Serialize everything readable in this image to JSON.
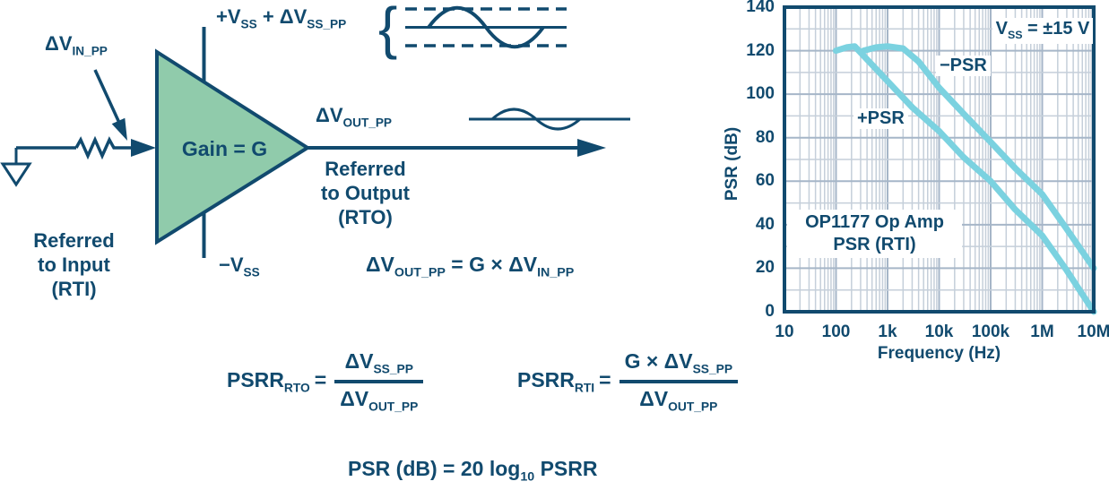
{
  "colors": {
    "navy": "#114a6e",
    "opamp_green": "#90cbab",
    "curve_cyan": "#7bd2e0"
  },
  "diagram": {
    "vin_label": {
      "main": "ΔV",
      "sub": "IN_PP"
    },
    "supply_top": {
      "p1": "+V",
      "s1": "SS",
      "p2": " + ΔV",
      "s2": "SS_PP"
    },
    "supply_bottom": {
      "p1": "−V",
      "s1": "SS"
    },
    "gain_label": "Gain = G",
    "vout_label": {
      "main": "ΔV",
      "sub": "OUT_PP"
    },
    "rto_caption": {
      "line1": "Referred",
      "line2": "to Output",
      "line3": "(RTO)"
    },
    "rti_caption": {
      "line1": "Referred",
      "line2": "to Input",
      "line3": "(RTI)"
    },
    "gain_equation": {
      "p1": "ΔV",
      "s1": "OUT_PP",
      "p2": " = G × ΔV",
      "s2": "IN_PP"
    }
  },
  "formulas": {
    "psrr_rto": {
      "lhs": "PSRR",
      "lhs_sub": "RTO",
      "equals": "=",
      "numerator": {
        "p1": "ΔV",
        "s1": "SS_PP"
      },
      "denominator": {
        "p1": "ΔV",
        "s1": "OUT_PP"
      }
    },
    "psrr_rti": {
      "lhs": "PSRR",
      "lhs_sub": "RTI",
      "equals": "=",
      "numerator": {
        "p1": "G × ΔV",
        "s1": "SS_PP"
      },
      "denominator": {
        "p1": "ΔV",
        "s1": "OUT_PP"
      }
    },
    "psr_db": {
      "p1": "PSR (dB) = 20 log",
      "s1": "10",
      "p2": " PSRR"
    }
  },
  "chart_data": {
    "type": "line",
    "title": "",
    "x_scale": "log",
    "xlabel": "Frequency (Hz)",
    "ylabel": "PSR (dB)",
    "xlim": [
      10,
      10000000
    ],
    "ylim": [
      0,
      140
    ],
    "x_ticks": [
      "10",
      "100",
      "1k",
      "10k",
      "100k",
      "1M",
      "10M"
    ],
    "y_ticks": [
      0,
      20,
      40,
      60,
      80,
      100,
      120,
      140
    ],
    "grid": true,
    "annotation": {
      "line1": "OP1177 Op Amp",
      "line2": "PSR (RTI)"
    },
    "condition": {
      "p1": "V",
      "s1": "SS",
      "p2": " = ±15 V"
    },
    "series": [
      {
        "name": "+PSR",
        "points": [
          [
            100,
            120
          ],
          [
            160,
            121.5
          ],
          [
            230,
            122
          ],
          [
            400,
            116
          ],
          [
            1000,
            106
          ],
          [
            3000,
            94
          ],
          [
            10000,
            83
          ],
          [
            30000,
            71
          ],
          [
            100000,
            60
          ],
          [
            300000,
            47
          ],
          [
            1000000,
            35
          ],
          [
            3000000,
            19
          ],
          [
            10000000,
            0
          ]
        ]
      },
      {
        "name": "−PSR",
        "points": [
          [
            340,
            120
          ],
          [
            600,
            121.5
          ],
          [
            1000,
            122
          ],
          [
            2000,
            121
          ],
          [
            4000,
            115
          ],
          [
            10000,
            103
          ],
          [
            30000,
            91
          ],
          [
            100000,
            78
          ],
          [
            300000,
            66
          ],
          [
            1000000,
            54
          ],
          [
            3000000,
            38
          ],
          [
            10000000,
            20
          ]
        ]
      }
    ],
    "colors": {
      "curve": "#7bd2e0",
      "axis": "#114a6e",
      "grid_minor": "#c5cfda",
      "grid_major": "#a6b6c8"
    }
  }
}
